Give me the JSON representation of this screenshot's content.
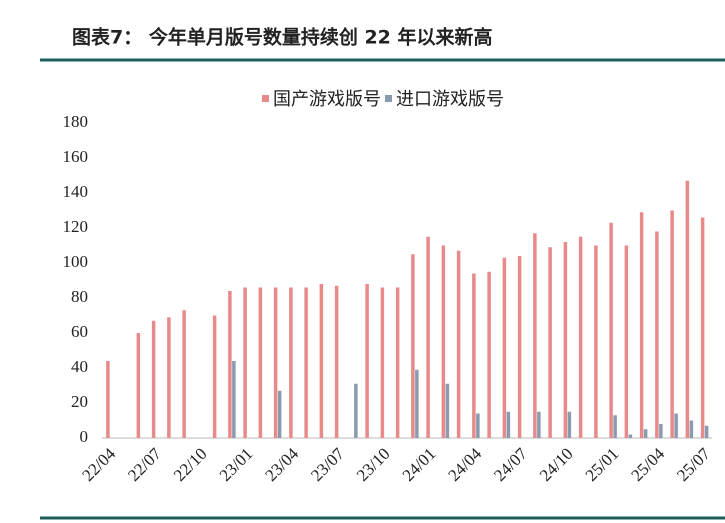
{
  "chart_data": {
    "type": "bar",
    "title": "图表7：    今年单月版号数量持续创 22 年以来新高",
    "categories": [
      "22/04",
      null,
      null,
      "22/07",
      null,
      null,
      "22/10",
      null,
      null,
      "23/01",
      null,
      null,
      "23/04",
      null,
      null,
      "23/07",
      null,
      null,
      "23/10",
      null,
      null,
      "24/01",
      null,
      null,
      "24/04",
      null,
      null,
      "24/07",
      null,
      null,
      "24/10",
      null,
      null,
      "25/01",
      null,
      null,
      "25/04",
      null,
      null,
      "25/07"
    ],
    "series": [
      {
        "name": "国产游戏版号",
        "color": "#e8898a",
        "values": [
          44,
          null,
          60,
          67,
          69,
          73,
          null,
          70,
          84,
          86,
          86,
          86,
          86,
          86,
          88,
          87,
          null,
          88,
          86,
          86,
          105,
          115,
          110,
          107,
          94,
          95,
          103,
          104,
          117,
          109,
          112,
          115,
          110,
          123,
          110,
          129,
          118,
          130,
          147,
          126
        ]
      },
      {
        "name": "进口游戏版号",
        "color": "#8a9bb0",
        "values": [
          null,
          null,
          null,
          null,
          null,
          null,
          null,
          null,
          44,
          null,
          null,
          27,
          null,
          null,
          null,
          null,
          31,
          null,
          null,
          null,
          39,
          null,
          31,
          null,
          14,
          null,
          15,
          null,
          15,
          null,
          15,
          null,
          null,
          13,
          2,
          5,
          8,
          14,
          10,
          7
        ]
      }
    ],
    "ylim": [
      0,
      180
    ],
    "yticks": [
      0,
      20,
      40,
      60,
      80,
      100,
      120,
      140,
      160,
      180
    ]
  }
}
